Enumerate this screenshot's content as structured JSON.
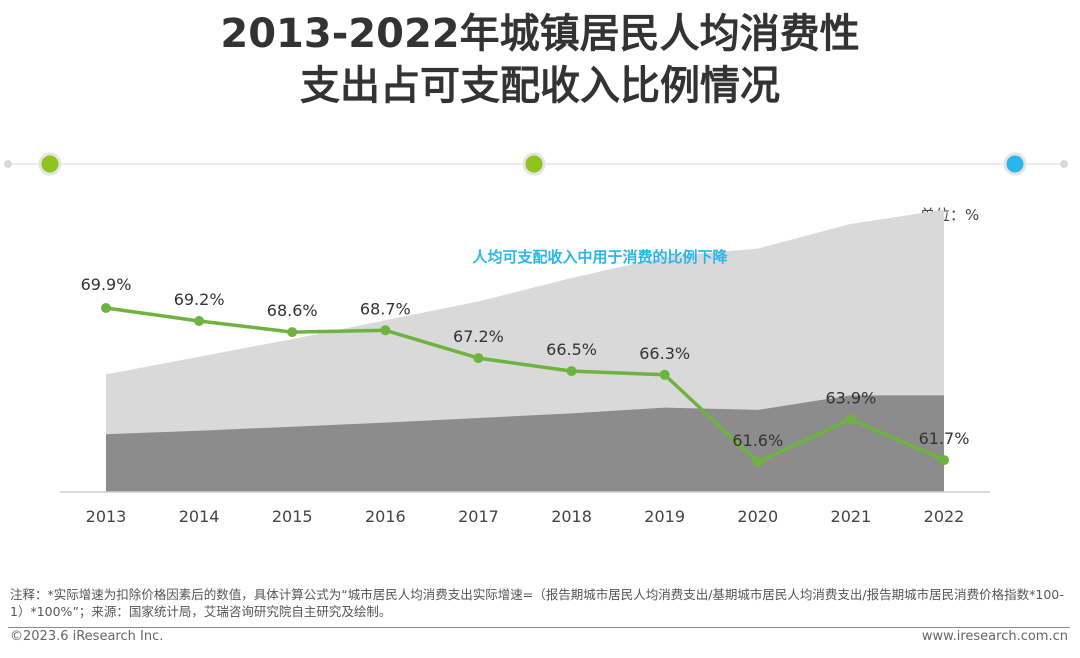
{
  "title": {
    "line1": "2013-2022年城镇居民人均消费性",
    "line2": "支出占可支配收入比例情况"
  },
  "unit_label": "单位：%",
  "annotation": "人均可支配收入中用于消费的比例下降",
  "colors": {
    "line": "#6db33f",
    "area_light": "#d9d9d9",
    "area_dark": "#8c8c8c",
    "deco_green": "#8fc31f",
    "deco_blue": "#29b6e8",
    "annotation": "#29b6e8"
  },
  "chart_data": {
    "type": "line",
    "title": "",
    "categories": [
      "2013",
      "2014",
      "2015",
      "2016",
      "2017",
      "2018",
      "2019",
      "2020",
      "2021",
      "2022"
    ],
    "series": [
      {
        "values": [
          69.9,
          69.2,
          68.6,
          68.7,
          67.2,
          66.5,
          66.3,
          61.6,
          63.9,
          61.7
        ],
        "labels": [
          "69.9%",
          "69.2%",
          "68.6%",
          "68.7%",
          "67.2%",
          "66.5%",
          "66.3%",
          "61.6%",
          "63.9%",
          "61.7%"
        ]
      }
    ],
    "background_areas": {
      "description_note": "decorative grey stacked area shapes behind the line, no axis values shown",
      "upper": [
        1,
        1.15,
        1.3,
        1.46,
        1.62,
        1.82,
        2.0,
        2.07,
        2.28,
        2.4
      ],
      "lower": [
        1,
        1.06,
        1.13,
        1.2,
        1.28,
        1.36,
        1.46,
        1.42,
        1.67,
        1.67
      ]
    },
    "ylim": [
      55,
      72
    ],
    "legend": "none",
    "grid": false
  },
  "footnote": "注释：*实际增速为扣除价格因素后的数值，具体计算公式为“城市居民人均消费支出实际增速=（报告期城市居民人均消费支出/基期城市居民人均消费支出/报告期城市居民消费价格指数*100-1）*100%”；来源：国家统计局，艾瑞咨询研究院自主研究及绘制。",
  "copyright": "©2023.6 iResearch Inc.",
  "website": "www.iresearch.com.cn"
}
